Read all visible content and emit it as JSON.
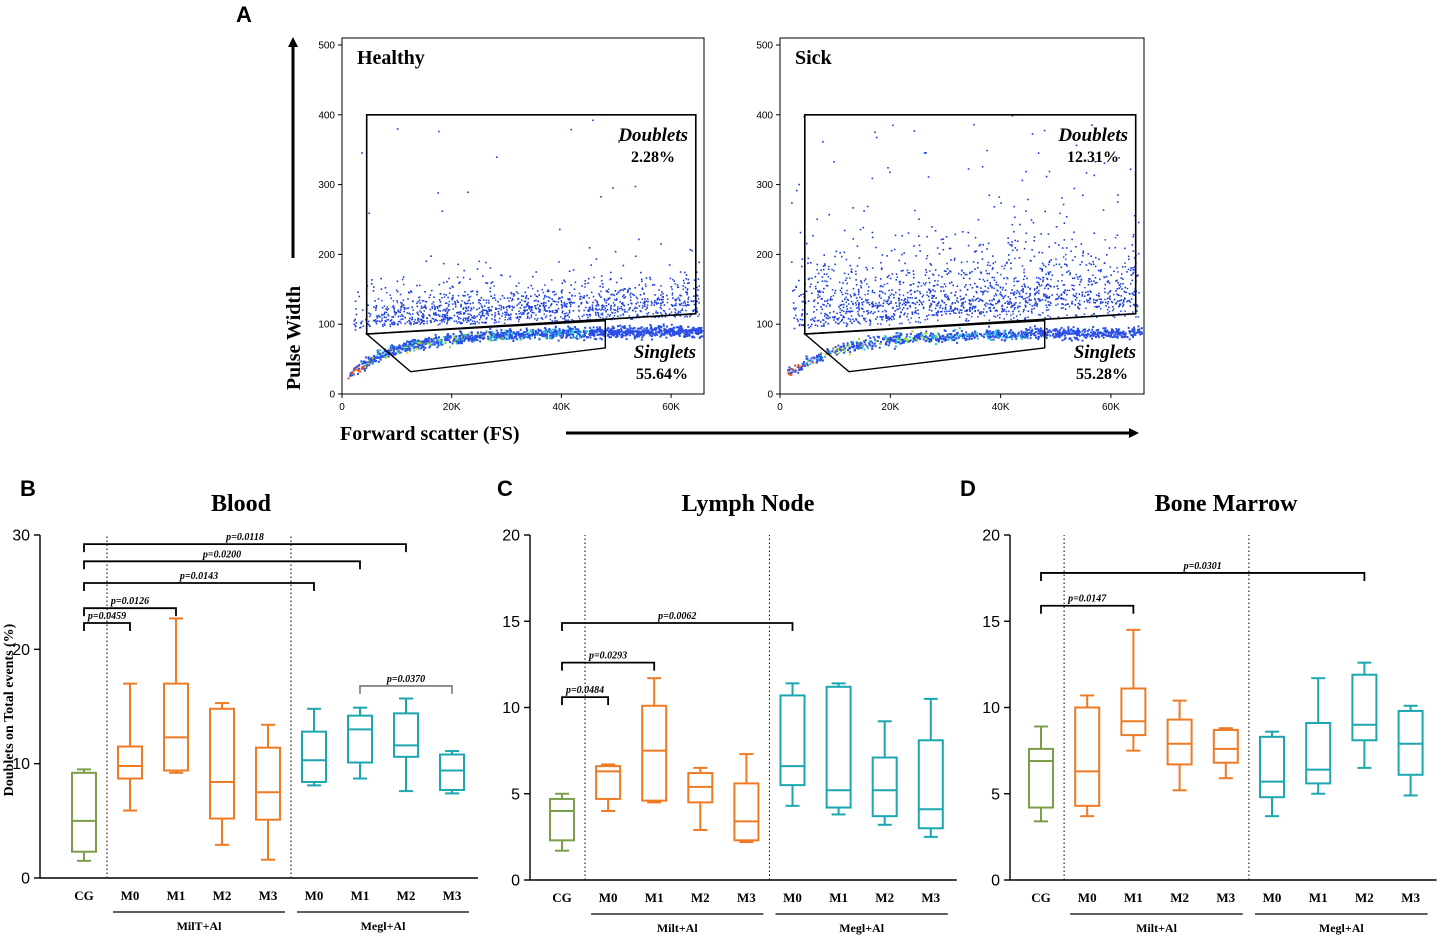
{
  "panel_labels": {
    "a": "A",
    "b": "B",
    "c": "C",
    "d": "D"
  },
  "colors": {
    "cg": "#7a9e4a",
    "milt": "#ee7a24",
    "megl": "#1ba6b0",
    "bracket": "#000000",
    "bracket_alt": "#888888"
  },
  "chart_data": [
    {
      "type": "scatter",
      "panel": "A",
      "plots": [
        {
          "label": "Healthy",
          "doublets_name": "Doublets",
          "doublets_pct": "2.28%",
          "singlets_name": "Singlets",
          "singlets_pct": "55.64%"
        },
        {
          "label": "Sick",
          "doublets_name": "Doublets",
          "doublets_pct": "12.31%",
          "singlets_name": "Singlets",
          "singlets_pct": "55.28%"
        }
      ],
      "xlabel": "Forward scatter (FS)",
      "ylabel": "Pulse Width",
      "xlim": [
        0,
        66000
      ],
      "ylim": [
        0,
        510
      ],
      "xticks": [
        0,
        20000,
        40000,
        60000
      ],
      "xtick_labels": [
        "0",
        "20K",
        "40K",
        "60K"
      ],
      "yticks": [
        0,
        100,
        200,
        300,
        400,
        500
      ],
      "ytick_labels": [
        "0",
        "100",
        "200",
        "300",
        "400",
        "500"
      ],
      "gates": {
        "doublets": [
          [
            4500,
            400
          ],
          [
            64500,
            400
          ],
          [
            64500,
            115
          ],
          [
            4500,
            86
          ]
        ],
        "singlets": [
          [
            4500,
            86
          ],
          [
            48000,
            105
          ],
          [
            48000,
            66
          ],
          [
            12500,
            32
          ]
        ]
      }
    },
    {
      "type": "box",
      "panel": "B",
      "title": "Blood",
      "ylabel": "Doublets on Total events (%)",
      "ylim": [
        0,
        30
      ],
      "yticks": [
        0,
        10,
        20,
        30
      ],
      "categories": [
        "CG",
        "M0",
        "M1",
        "M2",
        "M3",
        "M0",
        "M1",
        "M2",
        "M3"
      ],
      "groups": [
        "cg",
        "milt",
        "milt",
        "milt",
        "milt",
        "megl",
        "megl",
        "megl",
        "megl"
      ],
      "group_labels": [
        "MilT+Al",
        "Megl+Al"
      ],
      "boxes": [
        {
          "min": 1.5,
          "q1": 2.3,
          "median": 5.0,
          "q3": 9.2,
          "max": 9.5
        },
        {
          "min": 5.9,
          "q1": 8.7,
          "median": 9.8,
          "q3": 11.5,
          "max": 17.0
        },
        {
          "min": 9.2,
          "q1": 9.4,
          "median": 12.3,
          "q3": 17.0,
          "max": 22.7
        },
        {
          "min": 2.9,
          "q1": 5.2,
          "median": 8.4,
          "q3": 14.8,
          "max": 15.3
        },
        {
          "min": 1.6,
          "q1": 5.1,
          "median": 7.5,
          "q3": 11.4,
          "max": 13.4
        },
        {
          "min": 8.1,
          "q1": 8.4,
          "median": 10.3,
          "q3": 12.8,
          "max": 14.8
        },
        {
          "min": 8.7,
          "q1": 10.1,
          "median": 13.0,
          "q3": 14.2,
          "max": 14.9
        },
        {
          "min": 7.6,
          "q1": 10.6,
          "median": 11.6,
          "q3": 14.4,
          "max": 15.7
        },
        {
          "min": 7.4,
          "q1": 7.7,
          "median": 9.4,
          "q3": 10.8,
          "max": 11.1
        }
      ],
      "comparisons": [
        {
          "from": 0,
          "to": 1,
          "p": "p=0.0459",
          "level": 22.3,
          "style": "black"
        },
        {
          "from": 0,
          "to": 2,
          "p": "p=0.0126",
          "level": 23.6,
          "style": "black"
        },
        {
          "from": 0,
          "to": 5,
          "p": "p=0.0143",
          "level": 25.8,
          "style": "black"
        },
        {
          "from": 0,
          "to": 6,
          "p": "p=0.0200",
          "level": 27.7,
          "style": "black"
        },
        {
          "from": 0,
          "to": 7,
          "p": "p=0.0118",
          "level": 29.2,
          "style": "black"
        },
        {
          "from": 6,
          "to": 8,
          "p": "p=0.0370",
          "level": 16.8,
          "style": "gray"
        }
      ]
    },
    {
      "type": "box",
      "panel": "C",
      "title": "Lymph Node",
      "ylabel": "",
      "ylim": [
        0,
        20
      ],
      "yticks": [
        0,
        5,
        10,
        15,
        20
      ],
      "categories": [
        "CG",
        "M0",
        "M1",
        "M2",
        "M3",
        "M0",
        "M1",
        "M2",
        "M3"
      ],
      "groups": [
        "cg",
        "milt",
        "milt",
        "milt",
        "milt",
        "megl",
        "megl",
        "megl",
        "megl"
      ],
      "group_labels": [
        "Milt+Al",
        "Megl+Al"
      ],
      "boxes": [
        {
          "min": 1.7,
          "q1": 2.3,
          "median": 4.0,
          "q3": 4.7,
          "max": 5.0
        },
        {
          "min": 4.0,
          "q1": 4.7,
          "median": 6.3,
          "q3": 6.6,
          "max": 6.7
        },
        {
          "min": 4.5,
          "q1": 4.6,
          "median": 7.5,
          "q3": 10.1,
          "max": 11.7
        },
        {
          "min": 2.9,
          "q1": 4.5,
          "median": 5.4,
          "q3": 6.2,
          "max": 6.5
        },
        {
          "min": 2.2,
          "q1": 2.3,
          "median": 3.4,
          "q3": 5.6,
          "max": 7.3
        },
        {
          "min": 4.3,
          "q1": 5.5,
          "median": 6.6,
          "q3": 10.7,
          "max": 11.4
        },
        {
          "min": 3.8,
          "q1": 4.2,
          "median": 5.2,
          "q3": 11.2,
          "max": 11.4
        },
        {
          "min": 3.2,
          "q1": 3.7,
          "median": 5.2,
          "q3": 7.1,
          "max": 9.2
        },
        {
          "min": 2.5,
          "q1": 3.0,
          "median": 4.1,
          "q3": 8.1,
          "max": 10.5
        }
      ],
      "comparisons": [
        {
          "from": 0,
          "to": 1,
          "p": "p=0.0484",
          "level": 10.6,
          "style": "black"
        },
        {
          "from": 0,
          "to": 2,
          "p": "p=0.0293",
          "level": 12.6,
          "style": "black"
        },
        {
          "from": 0,
          "to": 5,
          "p": "p=0.0062",
          "level": 14.9,
          "style": "black"
        }
      ]
    },
    {
      "type": "box",
      "panel": "D",
      "title": "Bone Marrow",
      "ylabel": "",
      "ylim": [
        0,
        20
      ],
      "yticks": [
        0,
        5,
        10,
        15,
        20
      ],
      "categories": [
        "CG",
        "M0",
        "M1",
        "M2",
        "M3",
        "M0",
        "M1",
        "M2",
        "M3"
      ],
      "groups": [
        "cg",
        "milt",
        "milt",
        "milt",
        "milt",
        "megl",
        "megl",
        "megl",
        "megl"
      ],
      "group_labels": [
        "Milt+Al",
        "Megl+Al"
      ],
      "boxes": [
        {
          "min": 3.4,
          "q1": 4.2,
          "median": 6.9,
          "q3": 7.6,
          "max": 8.9
        },
        {
          "min": 3.7,
          "q1": 4.3,
          "median": 6.3,
          "q3": 10.0,
          "max": 10.7
        },
        {
          "min": 7.5,
          "q1": 8.4,
          "median": 9.2,
          "q3": 11.1,
          "max": 14.5
        },
        {
          "min": 5.2,
          "q1": 6.7,
          "median": 7.9,
          "q3": 9.3,
          "max": 10.4
        },
        {
          "min": 5.9,
          "q1": 6.8,
          "median": 7.6,
          "q3": 8.7,
          "max": 8.8
        },
        {
          "min": 3.7,
          "q1": 4.8,
          "median": 5.7,
          "q3": 8.3,
          "max": 8.6
        },
        {
          "min": 5.0,
          "q1": 5.6,
          "median": 6.4,
          "q3": 9.1,
          "max": 11.7
        },
        {
          "min": 6.5,
          "q1": 8.1,
          "median": 9.0,
          "q3": 11.9,
          "max": 12.6
        },
        {
          "min": 4.9,
          "q1": 6.1,
          "median": 7.9,
          "q3": 9.8,
          "max": 10.1
        }
      ],
      "comparisons": [
        {
          "from": 0,
          "to": 2,
          "p": "p=0.0147",
          "level": 15.9,
          "style": "black"
        },
        {
          "from": 0,
          "to": 7,
          "p": "p=0.0301",
          "level": 17.8,
          "style": "black"
        }
      ]
    }
  ]
}
